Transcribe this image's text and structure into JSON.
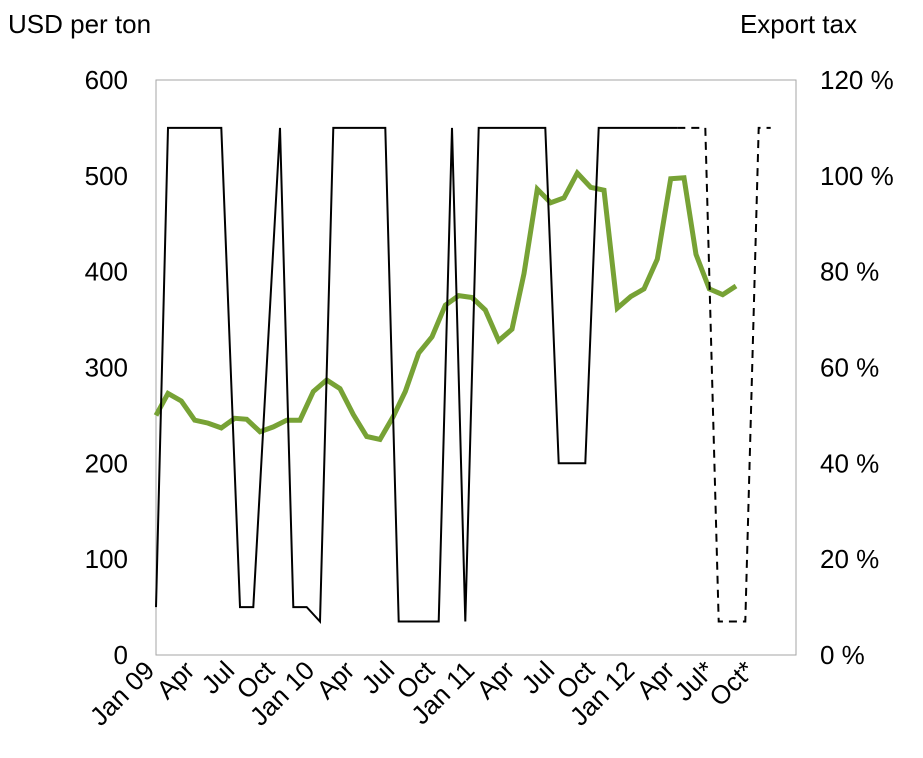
{
  "chart_data": {
    "type": "line",
    "left_axis_title": "USD per ton",
    "right_axis_title": "Export tax",
    "left_ticks": [
      "0",
      "100",
      "200",
      "300",
      "400",
      "500",
      "600"
    ],
    "right_ticks": [
      "0 %",
      "20 %",
      "40 %",
      "60 %",
      "80 %",
      "100 %",
      "120 %"
    ],
    "ylim_left": [
      0,
      600
    ],
    "ylim_right": [
      0,
      120
    ],
    "x_ticks": [
      {
        "label": "Jan 09",
        "month": 0
      },
      {
        "label": "Apr",
        "month": 3
      },
      {
        "label": "Jul",
        "month": 6
      },
      {
        "label": "Oct",
        "month": 9
      },
      {
        "label": "Jan 10",
        "month": 12
      },
      {
        "label": "Apr",
        "month": 15
      },
      {
        "label": "Jul",
        "month": 18
      },
      {
        "label": "Oct",
        "month": 21
      },
      {
        "label": "Jan 11",
        "month": 24
      },
      {
        "label": "Apr",
        "month": 27
      },
      {
        "label": "Jul",
        "month": 30
      },
      {
        "label": "Oct",
        "month": 33
      },
      {
        "label": "Jan 12",
        "month": 36
      },
      {
        "label": "Apr",
        "month": 39
      },
      {
        "label": "Jul*",
        "month": 42
      },
      {
        "label": "Oct*",
        "month": 45
      }
    ],
    "xlim": [
      0,
      48
    ],
    "grid": false,
    "colors": {
      "price": "#77a235",
      "tax": "#000000"
    },
    "series": [
      {
        "axis": "left",
        "color": "#77a235",
        "style": "solid",
        "x": [
          0,
          0.9,
          1.9,
          2.9,
          3.9,
          4.9,
          5.9,
          6.8,
          7.8,
          8.8,
          9.8,
          10.8,
          11.8,
          12.8,
          13.8,
          14.8,
          15.8,
          16.8,
          17.8,
          18.7,
          19.7,
          20.7,
          21.7,
          22.7,
          23.7,
          24.7,
          25.7,
          26.7,
          27.6,
          28.6,
          29.6,
          30.6,
          31.6,
          32.6,
          33.6,
          34.6,
          35.6,
          36.6,
          37.6,
          38.6,
          39.6,
          40.5,
          41.5,
          42.5,
          43.5,
          44.5
        ],
        "values": [
          250,
          273,
          265,
          245,
          242,
          237,
          247,
          246,
          233,
          238,
          245,
          245,
          275,
          287,
          278,
          251,
          228,
          225,
          249,
          275,
          315,
          332,
          365,
          375,
          373,
          360,
          328,
          340,
          398,
          486,
          472,
          477,
          503,
          488,
          485,
          362,
          374,
          382,
          413,
          497,
          498,
          418,
          382,
          376,
          385,
          null
        ]
      },
      {
        "axis": "right",
        "color": "#000000",
        "style": "solid",
        "x": [
          0,
          0.9,
          2.9,
          4.9,
          6.3,
          7.3,
          9.3,
          10.3,
          11.3,
          12.3,
          13.3,
          14.3,
          16.2,
          17.2,
          18.2,
          19.2,
          21.2,
          22.2,
          23.2,
          24.2,
          25.2,
          26.2,
          28.2,
          29.2,
          30.2,
          31.2,
          32.2,
          33.2,
          35.1,
          36.1,
          37.1,
          38.1,
          39.1
        ],
        "values": [
          10,
          110,
          110,
          110,
          10,
          10,
          110,
          10,
          10,
          7,
          110,
          110,
          110,
          110,
          7,
          7,
          7,
          110,
          7,
          110,
          110,
          110,
          110,
          110,
          40,
          40,
          40,
          110,
          110,
          110,
          110,
          110,
          110
        ]
      },
      {
        "axis": "right",
        "color": "#000000",
        "style": "dashed",
        "x": [
          39.1,
          41.2,
          42.2,
          44.2,
          45.2,
          46.1
        ],
        "values": [
          110,
          110,
          7,
          7,
          110,
          110
        ]
      }
    ]
  }
}
